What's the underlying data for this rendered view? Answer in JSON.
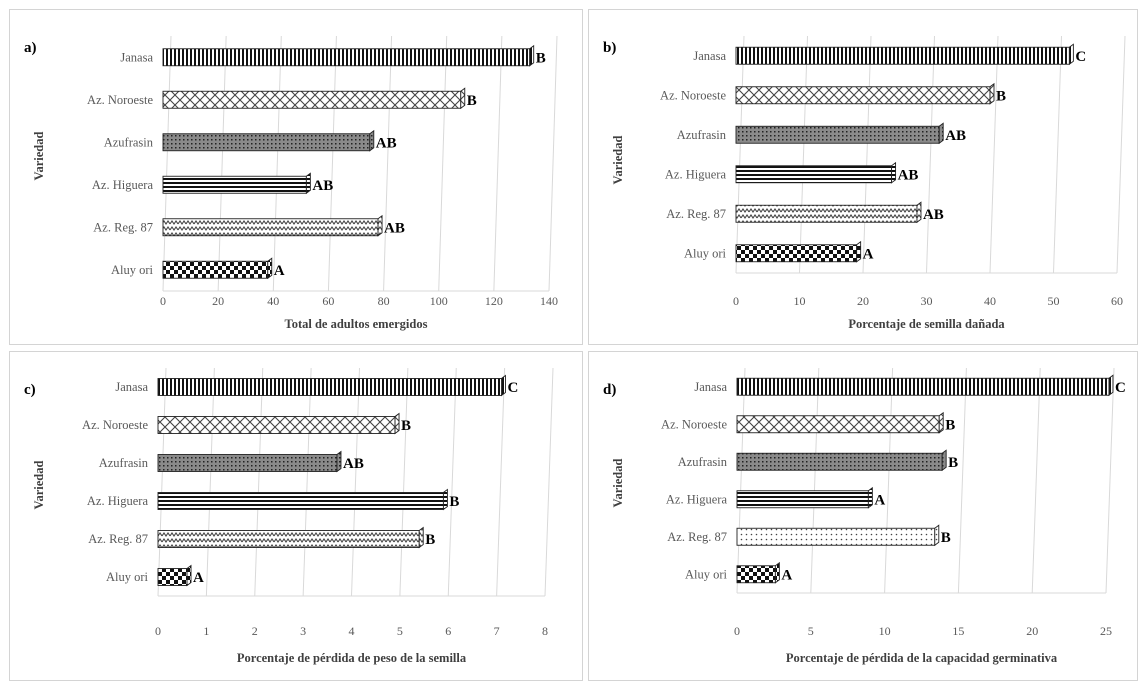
{
  "chart_data": [
    {
      "type": "bar",
      "panel_label": "a)",
      "categories": [
        "Janasa",
        "Az. Noroeste",
        "Azufrasin",
        "Az. Higuera",
        "Az. Reg. 87",
        "Aluy ori"
      ],
      "values": [
        133,
        108,
        75,
        52,
        78,
        38
      ],
      "group_labels": [
        "B",
        "B",
        "AB",
        "AB",
        "AB",
        "A"
      ],
      "patterns": [
        "vstripe",
        "diamond",
        "dotgrid",
        "hstripe",
        "zigzag",
        "checker"
      ],
      "xlabel": "Total de adultos emergidos",
      "ylabel": "Variedad",
      "xlim": [
        0,
        140
      ],
      "ticks": [
        0,
        20,
        40,
        60,
        80,
        100,
        120,
        140
      ],
      "grid": true
    },
    {
      "type": "bar",
      "panel_label": "b)",
      "categories": [
        "Janasa",
        "Az. Noroeste",
        "Azufrasin",
        "Az. Higuera",
        "Az. Reg. 87",
        "Aluy ori"
      ],
      "values": [
        52.5,
        40,
        32,
        24.5,
        28.5,
        19
      ],
      "group_labels": [
        "C",
        "B",
        "AB",
        "AB",
        "AB",
        "A"
      ],
      "patterns": [
        "vstripe",
        "diamond",
        "dotgrid",
        "hstripe",
        "zigzag",
        "checker"
      ],
      "xlabel": "Porcentaje de semilla dañada",
      "ylabel": "Variedad",
      "xlim": [
        0,
        60
      ],
      "ticks": [
        0,
        10,
        20,
        30,
        40,
        50,
        60
      ],
      "grid": true
    },
    {
      "type": "bar",
      "panel_label": "c)",
      "categories": [
        "Janasa",
        "Az. Noroeste",
        "Azufrasin",
        "Az. Higuera",
        "Az. Reg. 87",
        "Aluy ori"
      ],
      "values": [
        7.1,
        4.9,
        3.7,
        5.9,
        5.4,
        0.6
      ],
      "group_labels": [
        "C",
        "B",
        "AB",
        "B",
        "B",
        "A"
      ],
      "patterns": [
        "vstripe",
        "diamond",
        "dotgrid",
        "hstripe",
        "zigzag",
        "checker"
      ],
      "xlabel": "Porcentaje de pérdida  de peso de la semilla",
      "ylabel": "Variedad",
      "xlim": [
        0,
        8
      ],
      "ticks": [
        0,
        1,
        2,
        3,
        4,
        5,
        6,
        7,
        8
      ],
      "grid": true
    },
    {
      "type": "bar",
      "panel_label": "d)",
      "categories": [
        "Janasa",
        "Az. Noroeste",
        "Azufrasin",
        "Az. Higuera",
        "Az. Reg. 87",
        "Aluy ori"
      ],
      "values": [
        25.2,
        13.7,
        13.9,
        8.9,
        13.4,
        2.6
      ],
      "group_labels": [
        "C",
        "B",
        "B",
        "A",
        "B",
        "A"
      ],
      "patterns": [
        "vstripe",
        "diamond",
        "dotgrid",
        "hstripe",
        "dots",
        "checker"
      ],
      "xlabel": "Porcentaje de pérdida  de la capacidad germinativa",
      "ylabel": "Variedad",
      "xlim": [
        0,
        25
      ],
      "ticks": [
        0,
        5,
        10,
        15,
        20,
        25
      ],
      "grid": true
    }
  ]
}
